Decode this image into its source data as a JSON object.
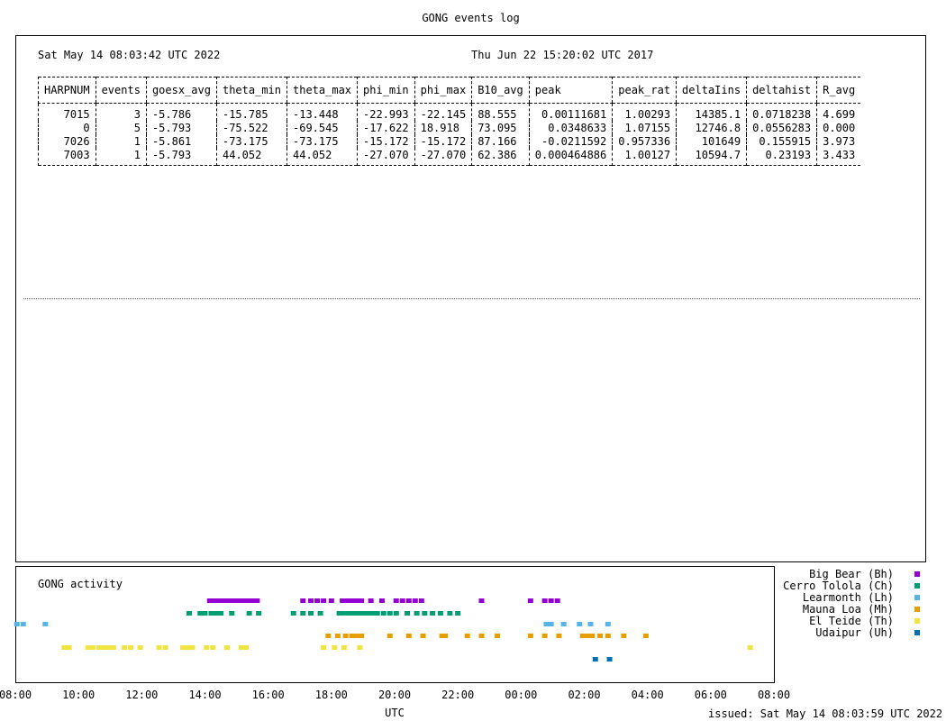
{
  "title": "GONG events log",
  "header": {
    "date_left": "Sat May 14 08:03:42 UTC 2022",
    "date_right": "Thu Jun 22 15:20:02 UTC 2017"
  },
  "events_table": {
    "columns": [
      "HARPNUM",
      "events",
      "goesx_avg",
      "theta_min",
      "theta_max",
      "phi_min",
      "phi_max",
      "B10_avg",
      "peak",
      "peak_rat",
      "deltaIins",
      "deltahist",
      "R_avg"
    ],
    "rows": [
      [
        "7015",
        "3",
        "-5.786",
        "-15.785",
        "-13.448",
        "-22.993",
        "-22.145",
        "88.555",
        "0.00111681",
        "1.00293",
        "14385.1",
        "0.0718238",
        "4.699"
      ],
      [
        "0",
        "5",
        "-5.793",
        "-75.522",
        "-69.545",
        "-17.622",
        "18.918",
        "73.095",
        "0.0348633",
        "1.07155",
        "12746.8",
        "0.0556283",
        "0.000"
      ],
      [
        "7026",
        "1",
        "-5.861",
        "-73.175",
        "-73.175",
        "-15.172",
        "-15.172",
        "87.166",
        "-0.0211592",
        "0.957336",
        "101649",
        "0.155915",
        "3.973"
      ],
      [
        "7003",
        "1",
        "-5.793",
        "44.052",
        "44.052",
        "-27.070",
        "-27.070",
        "62.386",
        "0.000464886",
        "1.00127",
        "10594.7",
        "0.23193",
        "3.433"
      ]
    ]
  },
  "chart_data": {
    "type": "scatter",
    "title": "GONG activity",
    "xlabel": "UTC",
    "ylabel": "",
    "x_unit": "hours elapsed from 08:00 UTC",
    "xlim": [
      0,
      24
    ],
    "x_ticks": [
      "08:00",
      "10:00",
      "12:00",
      "14:00",
      "16:00",
      "18:00",
      "20:00",
      "22:00",
      "00:00",
      "02:00",
      "04:00",
      "06:00",
      "08:00"
    ],
    "legend_position": "right",
    "series": [
      {
        "name": "Big Bear (Bh)",
        "color": "#9400d3",
        "x": [
          6.15,
          6.3,
          6.45,
          6.6,
          6.75,
          6.9,
          7.05,
          7.2,
          7.35,
          7.5,
          7.65,
          9.1,
          9.35,
          9.55,
          9.75,
          10.0,
          10.35,
          10.5,
          10.65,
          10.8,
          10.95,
          11.25,
          11.6,
          12.05,
          12.25,
          12.45,
          12.65,
          12.85,
          14.75,
          16.3,
          16.75,
          16.95,
          17.15
        ],
        "y_row": 1
      },
      {
        "name": "Cerro Tolola (Ch)",
        "color": "#009e73",
        "x": [
          5.5,
          5.85,
          6.0,
          6.2,
          6.35,
          6.5,
          6.85,
          7.4,
          7.7,
          8.8,
          9.1,
          9.35,
          9.65,
          10.25,
          10.4,
          10.55,
          10.7,
          10.85,
          11.0,
          11.15,
          11.3,
          11.45,
          11.65,
          11.85,
          12.05,
          12.4,
          12.7,
          12.95,
          13.2,
          13.45,
          13.75,
          14.0
        ],
        "y_row": 2
      },
      {
        "name": "Learmonth (Lh)",
        "color": "#56b4e9",
        "x": [
          0.05,
          0.25,
          0.95,
          16.8,
          16.95,
          17.35,
          17.85,
          18.2,
          18.75
        ],
        "y_row": 3
      },
      {
        "name": "Mauna Loa (Mh)",
        "color": "#e69f00",
        "x": [
          9.9,
          10.2,
          10.45,
          10.65,
          10.8,
          10.95,
          11.85,
          12.45,
          12.9,
          13.5,
          13.6,
          14.3,
          14.75,
          15.25,
          16.3,
          16.75,
          17.2,
          17.95,
          18.1,
          18.25,
          18.5,
          18.75,
          19.25,
          19.95
        ],
        "y_row": 4
      },
      {
        "name": "El Teide (Th)",
        "color": "#f0e442",
        "x": [
          1.55,
          1.7,
          2.3,
          2.45,
          2.65,
          2.8,
          2.95,
          3.1,
          3.45,
          3.65,
          3.95,
          4.55,
          4.75,
          5.3,
          5.45,
          5.6,
          6.05,
          6.25,
          6.7,
          7.15,
          7.3,
          9.75,
          10.1,
          10.4,
          10.9,
          23.25
        ],
        "y_row": 5
      },
      {
        "name": "Udaipur (Uh)",
        "color": "#0072b2",
        "x": [
          18.35,
          18.8
        ],
        "y_row": 6
      }
    ]
  },
  "footer": {
    "issued": "issued: Sat May 14 08:03:59 UTC 2022"
  }
}
